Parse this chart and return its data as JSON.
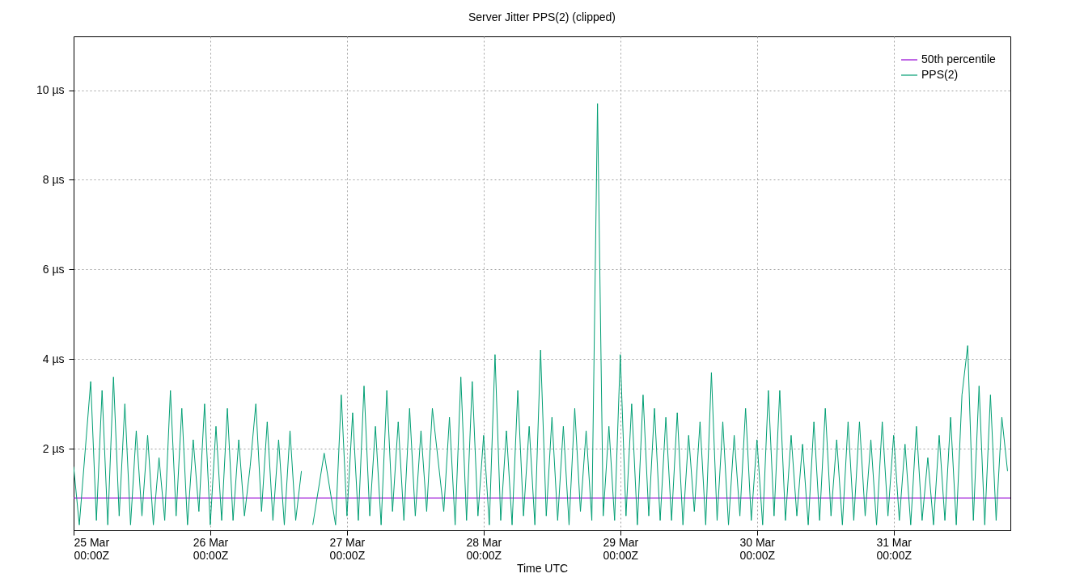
{
  "chart_data": {
    "type": "line",
    "title": "Server Jitter PPS(2) (clipped)",
    "xlabel": "Time UTC",
    "xlim": [
      "--03-25T00:00",
      "--03-31T20:30"
    ],
    "ylim": [
      0.18,
      11.2
    ],
    "xticks": [
      {
        "value": "--03-25T00:00",
        "label": "25 Mar\n00:00Z"
      },
      {
        "value": "--03-26T00:00",
        "label": "26 Mar\n00:00Z"
      },
      {
        "value": "--03-27T00:00",
        "label": "27 Mar\n00:00Z"
      },
      {
        "value": "--03-28T00:00",
        "label": "28 Mar\n00:00Z"
      },
      {
        "value": "--03-29T00:00",
        "label": "29 Mar\n00:00Z"
      },
      {
        "value": "--03-30T00:00",
        "label": "30 Mar\n00:00Z"
      },
      {
        "value": "--03-31T00:00",
        "label": "31 Mar\n00:00Z"
      }
    ],
    "yticks": [
      {
        "value": 2,
        "label": "2 µs"
      },
      {
        "value": 4,
        "label": "4 µs"
      },
      {
        "value": 6,
        "label": "6 µs"
      },
      {
        "value": 8,
        "label": "8 µs"
      },
      {
        "value": 10,
        "label": "10 µs"
      }
    ],
    "grid": true,
    "legend": "top right",
    "series": [
      {
        "name": "50th percentile",
        "color": "#9400d3",
        "x": [
          "--03-25T00:00",
          "--03-31T20:30"
        ],
        "values": [
          0.9,
          0.9
        ]
      },
      {
        "name": "PPS(2)",
        "color": "#009e73",
        "x": [
          "--03-25T00:00",
          "--03-25T01:00",
          "--03-25T03:00",
          "--03-25T04:00",
          "--03-25T05:00",
          "--03-25T06:00",
          "--03-25T07:00",
          "--03-25T08:00",
          "--03-25T09:00",
          "--03-25T10:00",
          "--03-25T11:00",
          "--03-25T12:00",
          "--03-25T13:00",
          "--03-25T14:00",
          "--03-25T15:00",
          "--03-25T16:00",
          "--03-25T17:00",
          "--03-25T18:00",
          "--03-25T19:00",
          "--03-25T20:00",
          "--03-25T21:00",
          "--03-25T22:00",
          "--03-25T23:00",
          "--03-26T00:00",
          "--03-26T01:00",
          "--03-26T02:00",
          "--03-26T03:00",
          "--03-26T04:00",
          "--03-26T05:00",
          "--03-26T06:00",
          "--03-26T07:00",
          "--03-26T08:00",
          "--03-26T09:00",
          "--03-26T10:00",
          "--03-26T11:00",
          "--03-26T12:00",
          "--03-26T13:00",
          "--03-26T14:00",
          "--03-26T15:00",
          "--03-26T16:00",
          "--03-26T17:00",
          "--03-26T18:00",
          "--03-26T20:00",
          "--03-26T22:00",
          "--03-26T23:00",
          "--03-27T00:00",
          "--03-27T01:00",
          "--03-27T02:00",
          "--03-27T03:00",
          "--03-27T04:00",
          "--03-27T05:00",
          "--03-27T06:00",
          "--03-27T07:00",
          "--03-27T08:00",
          "--03-27T09:00",
          "--03-27T10:00",
          "--03-27T11:00",
          "--03-27T12:00",
          "--03-27T13:00",
          "--03-27T14:00",
          "--03-27T15:00",
          "--03-27T17:00",
          "--03-27T18:00",
          "--03-27T19:00",
          "--03-27T20:00",
          "--03-27T21:00",
          "--03-27T22:00",
          "--03-27T23:00",
          "--03-28T00:00",
          "--03-28T01:00",
          "--03-28T02:00",
          "--03-28T03:00",
          "--03-28T04:00",
          "--03-28T05:00",
          "--03-28T06:00",
          "--03-28T07:00",
          "--03-28T08:00",
          "--03-28T09:00",
          "--03-28T10:00",
          "--03-28T11:00",
          "--03-28T12:00",
          "--03-28T13:00",
          "--03-28T14:00",
          "--03-28T15:00",
          "--03-28T16:00",
          "--03-28T17:00",
          "--03-28T18:00",
          "--03-28T19:00",
          "--03-28T20:00",
          "--03-28T21:00",
          "--03-28T22:00",
          "--03-28T23:00",
          "--03-29T00:00",
          "--03-29T01:00",
          "--03-29T02:00",
          "--03-29T03:00",
          "--03-29T04:00",
          "--03-29T05:00",
          "--03-29T06:00",
          "--03-29T07:00",
          "--03-29T08:00",
          "--03-29T09:00",
          "--03-29T10:00",
          "--03-29T11:00",
          "--03-29T12:00",
          "--03-29T13:00",
          "--03-29T14:00",
          "--03-29T15:00",
          "--03-29T16:00",
          "--03-29T17:00",
          "--03-29T18:00",
          "--03-29T19:00",
          "--03-29T20:00",
          "--03-29T21:00",
          "--03-29T22:00",
          "--03-29T23:00",
          "--03-30T00:00",
          "--03-30T01:00",
          "--03-30T02:00",
          "--03-30T03:00",
          "--03-30T04:00",
          "--03-30T05:00",
          "--03-30T06:00",
          "--03-30T07:00",
          "--03-30T08:00",
          "--03-30T09:00",
          "--03-30T10:00",
          "--03-30T11:00",
          "--03-30T12:00",
          "--03-30T13:00",
          "--03-30T14:00",
          "--03-30T15:00",
          "--03-30T16:00",
          "--03-30T17:00",
          "--03-30T18:00",
          "--03-30T19:00",
          "--03-30T20:00",
          "--03-30T21:00",
          "--03-30T22:00",
          "--03-30T23:00",
          "--03-31T00:00",
          "--03-31T01:00",
          "--03-31T02:00",
          "--03-31T03:00",
          "--03-31T04:00",
          "--03-31T05:00",
          "--03-31T06:00",
          "--03-31T07:00",
          "--03-31T08:00",
          "--03-31T09:00",
          "--03-31T10:00",
          "--03-31T11:00",
          "--03-31T12:00",
          "--03-31T13:00",
          "--03-31T14:00",
          "--03-31T15:00",
          "--03-31T16:00",
          "--03-31T17:00",
          "--03-31T18:00",
          "--03-31T19:00",
          "--03-31T20:00"
        ],
        "values": [
          1.6,
          0.3,
          3.5,
          0.4,
          3.3,
          0.3,
          3.6,
          0.5,
          3.0,
          0.3,
          2.4,
          0.5,
          2.3,
          0.3,
          1.8,
          0.4,
          3.3,
          0.5,
          2.9,
          0.3,
          2.2,
          0.6,
          3.0,
          0.3,
          2.5,
          0.4,
          2.9,
          0.4,
          2.2,
          0.5,
          1.6,
          3.0,
          0.6,
          2.6,
          0.4,
          2.2,
          0.3,
          2.4,
          0.4,
          1.5,
          null,
          0.3,
          1.9,
          0.3,
          3.2,
          0.5,
          2.8,
          0.4,
          3.4,
          0.5,
          2.5,
          0.3,
          3.3,
          0.6,
          2.6,
          0.4,
          2.9,
          0.5,
          2.4,
          0.6,
          2.9,
          0.6,
          2.7,
          0.3,
          3.6,
          0.4,
          3.5,
          0.5,
          2.3,
          0.3,
          4.1,
          0.4,
          2.4,
          0.3,
          3.3,
          0.5,
          2.5,
          0.3,
          4.2,
          0.5,
          2.7,
          0.4,
          2.5,
          0.3,
          2.9,
          0.6,
          2.4,
          0.4,
          9.7,
          0.5,
          2.5,
          0.4,
          4.1,
          0.5,
          3.0,
          0.3,
          3.2,
          0.5,
          2.9,
          0.4,
          2.7,
          0.4,
          2.8,
          0.3,
          2.3,
          0.6,
          2.6,
          0.3,
          3.7,
          0.4,
          2.6,
          0.3,
          2.3,
          0.5,
          2.9,
          0.4,
          2.2,
          0.3,
          3.3,
          0.5,
          3.3,
          0.4,
          2.3,
          0.5,
          2.1,
          0.3,
          2.6,
          0.4,
          2.9,
          0.5,
          2.2,
          0.3,
          2.6,
          0.4,
          2.6,
          0.5,
          2.2,
          0.3,
          2.6,
          0.5,
          2.3,
          0.4,
          2.1,
          0.3,
          2.5,
          0.4,
          1.8,
          0.3,
          2.3,
          0.4,
          2.7,
          0.3,
          3.2,
          4.3,
          0.4,
          3.4,
          0.3,
          3.2,
          0.4,
          2.7,
          1.5
        ]
      }
    ]
  }
}
